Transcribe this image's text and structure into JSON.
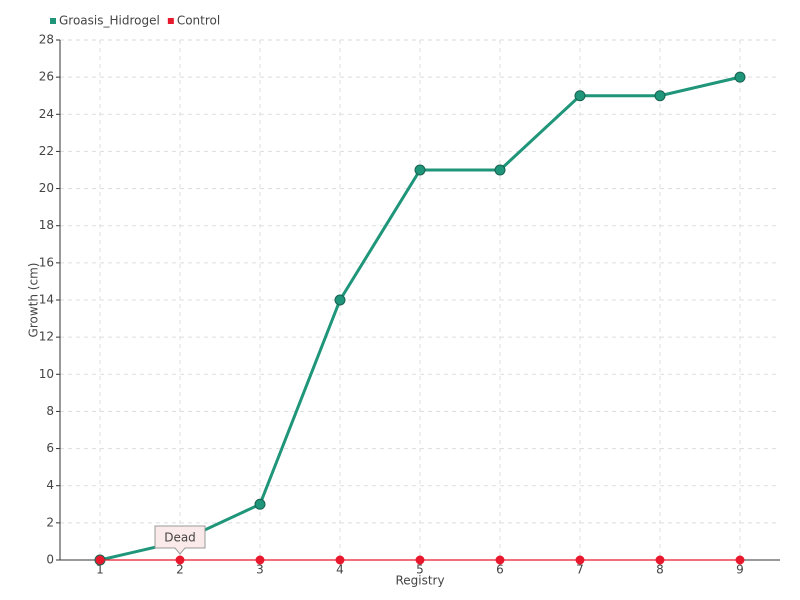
{
  "chart_data": {
    "type": "line",
    "x_label": "Registry",
    "y_label": "Growth (cm)",
    "categories": [
      "1",
      "2",
      "3",
      "4",
      "5",
      "6",
      "7",
      "8",
      "9"
    ],
    "series": [
      {
        "name": "Groasis_Hidrogel",
        "color": "#1f957a",
        "values": [
          0,
          1,
          3,
          14,
          21,
          21,
          25,
          25,
          26
        ]
      },
      {
        "name": "Control",
        "color": "#e8192c",
        "values": [
          0,
          0,
          0,
          0,
          0,
          0,
          0,
          0,
          0
        ]
      }
    ],
    "annotation": "Dead",
    "ylim": [
      0,
      28
    ],
    "yticks": [
      0,
      2,
      4,
      6,
      8,
      10,
      12,
      14,
      16,
      18,
      20,
      22,
      24,
      26,
      28
    ],
    "grid": true,
    "legend": "top-left"
  }
}
